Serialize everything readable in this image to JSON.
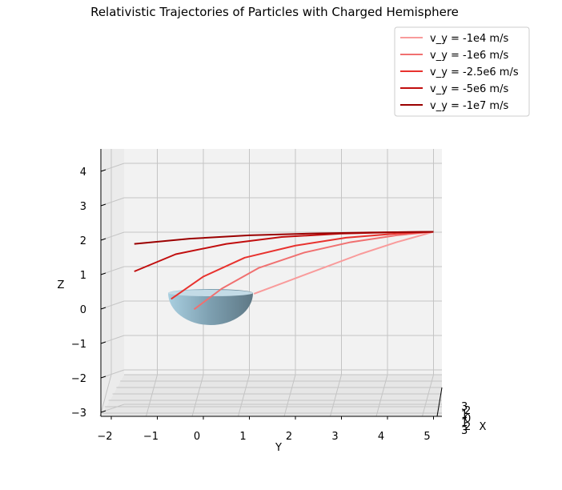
{
  "chart_data": {
    "type": "line",
    "title": "Relativistic Trajectories of Particles with Charged Hemisphere",
    "xlabel": "X",
    "ylabel": "Y",
    "zlabel": "Z",
    "view": "3d-side (Y horizontal, Z vertical)",
    "y_ticks": [
      "−2",
      "−1",
      "0",
      "1",
      "2",
      "3",
      "4",
      "5"
    ],
    "z_ticks": [
      "−3",
      "−2",
      "−1",
      "0",
      "1",
      "2",
      "3",
      "4"
    ],
    "x_ticks": [
      "3",
      "2",
      "1",
      "0",
      "1",
      "2",
      "3"
    ],
    "ylim": [
      -2.2,
      5.3
    ],
    "zlim": [
      -3.2,
      4.3
    ],
    "legend_position": "top-right",
    "hemisphere": {
      "radius": 1,
      "center": [
        0,
        0,
        0
      ],
      "orientation": "lower",
      "color": "#8fb3c6"
    },
    "series": [
      {
        "name": "v_y = -1e4 m/s",
        "color": "#f99b9b",
        "y": [
          1.1,
          1.8,
          2.6,
          3.4,
          4.2,
          5.0
        ],
        "z": [
          0.35,
          0.7,
          1.1,
          1.5,
          1.85,
          2.15
        ]
      },
      {
        "name": "v_y = -1e6 m/s",
        "color": "#f07070",
        "y": [
          -0.2,
          0.4,
          1.2,
          2.2,
          3.2,
          4.2,
          5.0
        ],
        "z": [
          -0.1,
          0.5,
          1.1,
          1.55,
          1.85,
          2.05,
          2.15
        ]
      },
      {
        "name": "v_y = -2.5e6 m/s",
        "color": "#e8322e",
        "y": [
          -0.7,
          0.0,
          0.9,
          2.0,
          3.1,
          4.2,
          5.0
        ],
        "z": [
          0.2,
          0.85,
          1.4,
          1.75,
          1.98,
          2.1,
          2.15
        ]
      },
      {
        "name": "v_y = -5e6 m/s",
        "color": "#c10e0e",
        "y": [
          -1.5,
          -0.6,
          0.5,
          1.7,
          3.0,
          4.2,
          5.0
        ],
        "z": [
          1.0,
          1.5,
          1.8,
          2.0,
          2.1,
          2.14,
          2.15
        ]
      },
      {
        "name": "v_y = -1e7 m/s",
        "color": "#9b0000",
        "y": [
          -1.5,
          -0.3,
          1.0,
          2.3,
          3.6,
          5.0
        ],
        "z": [
          1.8,
          1.95,
          2.05,
          2.1,
          2.13,
          2.15
        ]
      }
    ]
  }
}
